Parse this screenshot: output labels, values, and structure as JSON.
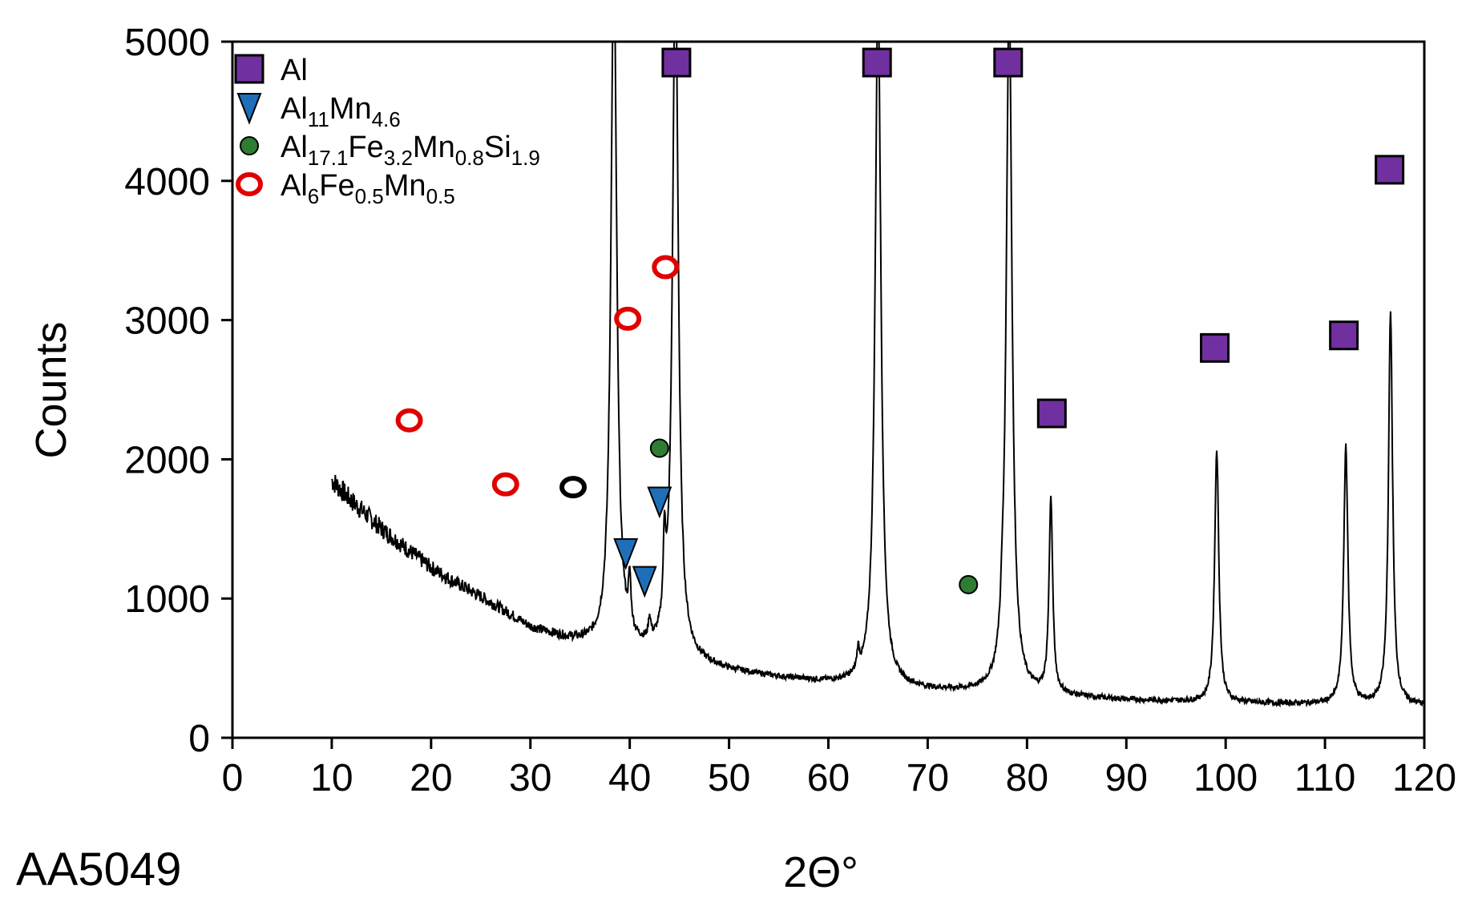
{
  "chart_data": {
    "type": "line",
    "xlabel": "2Θ°",
    "ylabel": "Counts",
    "sample_label": "AA5049",
    "xlim": [
      0,
      120
    ],
    "ylim": [
      0,
      5000
    ],
    "xticks": [
      "0",
      "10",
      "20",
      "30",
      "40",
      "50",
      "60",
      "70",
      "80",
      "90",
      "100",
      "110",
      "120"
    ],
    "yticks": [
      "0",
      "1000",
      "2000",
      "3000",
      "4000",
      "5000"
    ],
    "grid": false,
    "legend_position": "top-left",
    "colors": {
      "Al": "#7030a0",
      "Al11Mn4.6": "#1f6fb8",
      "Al17.1Fe3.2Mn0.8Si1.9": "#2e7d32",
      "Al6Fe0.5Mn0.5": "#e00000",
      "trace": "#000000"
    },
    "legend": [
      {
        "key": "Al",
        "marker": "square",
        "parts": [
          [
            "Al",
            ""
          ]
        ]
      },
      {
        "key": "Al11Mn4.6",
        "marker": "triangle-down",
        "parts": [
          [
            "Al",
            "11"
          ],
          [
            "Mn",
            "4.6"
          ]
        ]
      },
      {
        "key": "Al17.1Fe3.2Mn0.8Si1.9",
        "marker": "circle",
        "parts": [
          [
            "Al",
            "17.1"
          ],
          [
            "Fe",
            "3.2"
          ],
          [
            "Mn",
            "0.8"
          ],
          [
            "Si",
            "1.9"
          ]
        ]
      },
      {
        "key": "Al6Fe0.5Mn0.5",
        "marker": "ring",
        "parts": [
          [
            "Al",
            "6"
          ],
          [
            "Fe",
            "0.5"
          ],
          [
            "Mn",
            "0.5"
          ]
        ]
      }
    ],
    "background": [
      [
        10,
        1850
      ],
      [
        12,
        1700
      ],
      [
        15,
        1500
      ],
      [
        18,
        1330
      ],
      [
        20,
        1220
      ],
      [
        22,
        1130
      ],
      [
        25,
        1010
      ],
      [
        28,
        880
      ],
      [
        30,
        790
      ],
      [
        33,
        720
      ],
      [
        35,
        680
      ],
      [
        37,
        650
      ],
      [
        40,
        620
      ],
      [
        42,
        600
      ],
      [
        45,
        560
      ],
      [
        48,
        510
      ],
      [
        50,
        480
      ],
      [
        55,
        430
      ],
      [
        60,
        395
      ],
      [
        63,
        380
      ],
      [
        65,
        370
      ],
      [
        70,
        340
      ],
      [
        75,
        325
      ],
      [
        78,
        315
      ],
      [
        80,
        305
      ],
      [
        85,
        290
      ],
      [
        90,
        270
      ],
      [
        95,
        260
      ],
      [
        100,
        250
      ],
      [
        105,
        245
      ],
      [
        110,
        240
      ],
      [
        115,
        235
      ],
      [
        120,
        230
      ]
    ],
    "peaks": [
      {
        "x": 38.4,
        "height": 5000,
        "width": 0.35
      },
      {
        "x": 40.0,
        "height": 350,
        "width": 0.15
      },
      {
        "x": 42.0,
        "height": 150,
        "width": 0.15
      },
      {
        "x": 43.5,
        "height": 580,
        "width": 0.15
      },
      {
        "x": 44.6,
        "height": 5000,
        "width": 0.35
      },
      {
        "x": 63.0,
        "height": 150,
        "width": 0.15
      },
      {
        "x": 65.0,
        "height": 5000,
        "width": 0.35
      },
      {
        "x": 77.5,
        "height": 150,
        "width": 0.15
      },
      {
        "x": 78.2,
        "height": 5000,
        "width": 0.35
      },
      {
        "x": 82.4,
        "height": 1400,
        "width": 0.22
      },
      {
        "x": 99.1,
        "height": 1820,
        "width": 0.25
      },
      {
        "x": 112.1,
        "height": 1860,
        "width": 0.25
      },
      {
        "x": 116.6,
        "height": 2820,
        "width": 0.25
      }
    ],
    "markers": [
      {
        "series": "Al",
        "x": 44.7,
        "y": 4850
      },
      {
        "series": "Al",
        "x": 64.9,
        "y": 4850
      },
      {
        "series": "Al",
        "x": 78.1,
        "y": 4850
      },
      {
        "series": "Al",
        "x": 82.5,
        "y": 2330
      },
      {
        "series": "Al",
        "x": 98.9,
        "y": 2800
      },
      {
        "series": "Al",
        "x": 111.9,
        "y": 2890
      },
      {
        "series": "Al",
        "x": 116.5,
        "y": 4080
      },
      {
        "series": "Al11Mn4.6",
        "x": 39.6,
        "y": 1330
      },
      {
        "series": "Al11Mn4.6",
        "x": 41.5,
        "y": 1130
      },
      {
        "series": "Al11Mn4.6",
        "x": 43.0,
        "y": 1700
      },
      {
        "series": "Al17.1Fe3.2Mn0.8Si1.9",
        "x": 43.0,
        "y": 2080
      },
      {
        "series": "Al17.1Fe3.2Mn0.8Si1.9",
        "x": 74.1,
        "y": 1100
      },
      {
        "series": "Al6Fe0.5Mn0.5",
        "x": 17.8,
        "y": 2280
      },
      {
        "series": "Al6Fe0.5Mn0.5",
        "x": 27.5,
        "y": 1820
      },
      {
        "series": "Al6Fe0.5Mn0.5",
        "x": 39.8,
        "y": 3010
      },
      {
        "series": "Al6Fe0.5Mn0.5",
        "x": 43.6,
        "y": 3380
      },
      {
        "series": "unlabeled-ring",
        "x": 34.3,
        "y": 1800
      }
    ]
  }
}
